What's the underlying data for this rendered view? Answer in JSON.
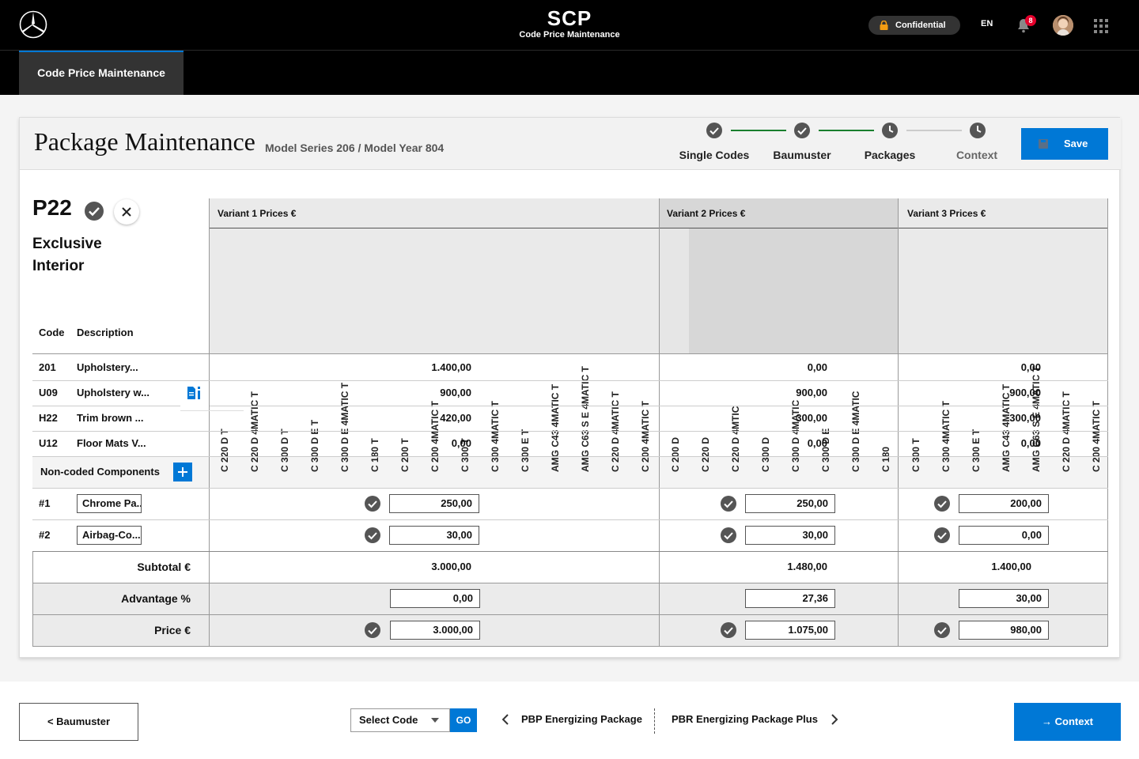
{
  "header": {
    "app_title": "SCP",
    "app_subtitle": "Code Price Maintenance",
    "confidential_label": "Confidential",
    "language": "EN",
    "notification_count": "8"
  },
  "nav": {
    "active_tab": "Code Price Maintenance"
  },
  "page": {
    "title": "Package Maintenance",
    "subtitle": "Model Series 206 / Model Year 804",
    "save_label": "Save"
  },
  "stepper": [
    {
      "label": "Single Codes",
      "state": "done"
    },
    {
      "label": "Baumuster",
      "state": "done"
    },
    {
      "label": "Packages",
      "state": "current"
    },
    {
      "label": "Context",
      "state": "pending"
    }
  ],
  "package": {
    "code": "P22",
    "name": "Exclusive Interior"
  },
  "table": {
    "col_code": "Code",
    "col_description": "Description",
    "variants": [
      {
        "title": "Variant 1 Prices €",
        "models": [
          "C 220 D T",
          "C 220 D 4MATIC T",
          "C 300 D T",
          "C 300 D E T",
          "C 300 D E 4MATIC T",
          "C 180 T",
          "C 200 T",
          "C 200 4MATIC T",
          "C 300 T",
          "C 300 4MATIC T",
          "C 300 E T",
          "AMG C43 4MATIC T",
          "AMG C63 S E 4MATIC T",
          "C 220 D 4MATIC T",
          "C 200 4MATIC T"
        ]
      },
      {
        "title": "Variant 2 Prices €",
        "models": [
          "C 200 D",
          "C 220 D",
          "C 220 D 4MTIC",
          "C 300 D",
          "C 300 D 4MATIC",
          "C 300 D E",
          "C 300 D E 4MATIC",
          "C 180"
        ]
      },
      {
        "title": "Variant 3 Prices €",
        "models": [
          "C 300 T",
          "C 300 4MATIC T",
          "C 300 E T",
          "AMG C43 4MATIC T",
          "AMG C63 S E 4MATIC T",
          "C 220 D 4MATIC T",
          "C 200 4MATIC T"
        ]
      }
    ],
    "rows": [
      {
        "code": "201",
        "description": "Upholstery...",
        "prices": [
          "1.400,00",
          "0,00",
          "0,00"
        ]
      },
      {
        "code": "U09",
        "description": "Upholstery w...",
        "prices": [
          "900,00",
          "900,00",
          "900,00"
        ]
      },
      {
        "code": "H22",
        "description": "Trim brown ...",
        "prices": [
          "420,00",
          "300,00",
          "300,00"
        ]
      },
      {
        "code": "U12",
        "description": "Floor Mats V...",
        "prices": [
          "0,00",
          "0,00",
          "0,00"
        ]
      }
    ],
    "non_coded_label": "Non-coded Components",
    "components": [
      {
        "index": "#1",
        "name": "Chrome Pa...",
        "prices": [
          "250,00",
          "250,00",
          "200,00"
        ]
      },
      {
        "index": "#2",
        "name": "Airbag-Co...",
        "prices": [
          "30,00",
          "30,00",
          "0,00"
        ]
      }
    ],
    "subtotal_label": "Subtotal €",
    "subtotals": [
      "3.000,00",
      "1.480,00",
      "1.400,00"
    ],
    "advantage_label": "Advantage %",
    "advantages": [
      "0,00",
      "27,36",
      "30,00"
    ],
    "price_label": "Price €",
    "prices": [
      "3.000,00",
      "1.075,00",
      "980,00"
    ]
  },
  "footer": {
    "back_label": "< Baumuster",
    "select_placeholder": "Select Code",
    "go_label": "GO",
    "prev_package": "PBP Energizing Package",
    "next_package": "PBR Energizing Package Plus",
    "next_label": "→ Context"
  },
  "colors": {
    "accent": "#0078d6",
    "done_line": "#1a7f2e",
    "badge": "#e4002b"
  }
}
